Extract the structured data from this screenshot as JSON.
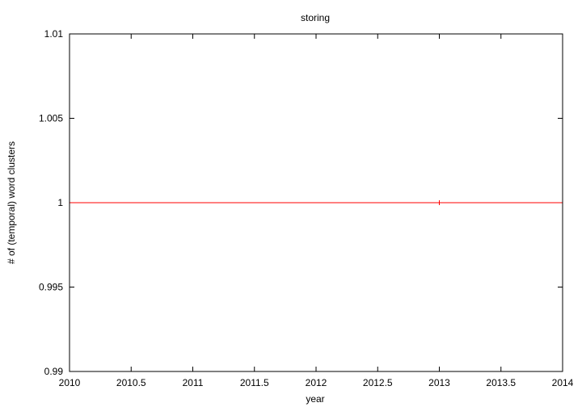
{
  "chart_data": {
    "type": "line",
    "title": "storing",
    "xlabel": "year",
    "ylabel": "# of (temporal) word clusters",
    "xlim": [
      2010,
      2014
    ],
    "ylim": [
      0.99,
      1.01
    ],
    "xticks": [
      "2010",
      "2010.5",
      "2011",
      "2011.5",
      "2012",
      "2012.5",
      "2013",
      "2013.5",
      "2014"
    ],
    "yticks": [
      "0.99",
      "0.995",
      "1",
      "1.005",
      "1.01"
    ],
    "grid": false,
    "series": [
      {
        "color": "#ff0000",
        "marker": "plus",
        "x": [
          2013
        ],
        "y": [
          1
        ]
      }
    ],
    "reference_lines": [
      {
        "orientation": "horizontal",
        "value": 1,
        "color": "#ff0000"
      }
    ]
  }
}
